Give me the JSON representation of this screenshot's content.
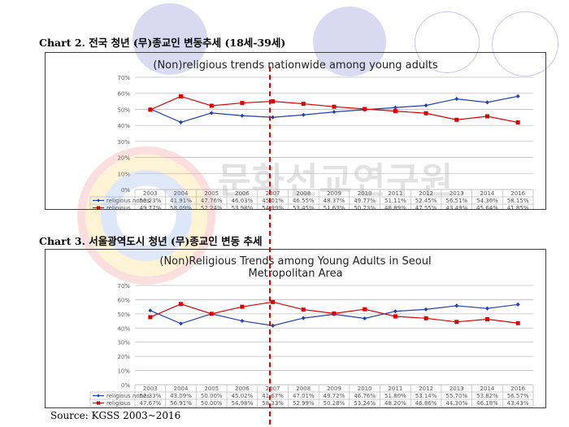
{
  "headings": {
    "chart2": "Chart 2. 전국 청년 (무)종교인 변동추세 (18세-39세)",
    "chart3": "Chart 3. 서울광역도시 청년 (무)종교인 변동 추세"
  },
  "source": "Source: KGSS 2003~2016",
  "watermark": "문화선교연구원",
  "colors": {
    "nones": "#1f3fb4",
    "religious": "#e00000",
    "grid": "#bfbfbf",
    "decor_circle": "#d9d9f2",
    "reference_line": "#e00000"
  },
  "chart_data": [
    {
      "type": "line",
      "title": "(Non)religious trends nationwide among young adults",
      "categories": [
        "2003",
        "2004",
        "2005",
        "2006",
        "2007",
        "2008",
        "2009",
        "2010",
        "2011",
        "2012",
        "2013",
        "2014",
        "2016"
      ],
      "ylim": [
        0,
        70
      ],
      "yticks": [
        "0%",
        "10%",
        "20%",
        "30%",
        "40%",
        "50%",
        "60%",
        "70%"
      ],
      "grid": true,
      "series": [
        {
          "name": "religious nones",
          "values": [
            50.23,
            41.91,
            47.76,
            46.03,
            45.01,
            46.55,
            48.37,
            49.77,
            51.11,
            52.45,
            56.51,
            54.36,
            58.15
          ],
          "labels": [
            "50.23%",
            "41.91%",
            "47.76%",
            "46.03%",
            "45.01%",
            "46.55%",
            "48.37%",
            "49.77%",
            "51.11%",
            "52.45%",
            "56.51%",
            "54.36%",
            "58.15%"
          ]
        },
        {
          "name": "religious",
          "values": [
            49.77,
            58.09,
            52.24,
            53.98,
            54.99,
            53.45,
            51.63,
            50.23,
            48.89,
            47.55,
            43.49,
            45.64,
            41.85
          ],
          "labels": [
            "49.77%",
            "58.09%",
            "52.24%",
            "53.98%",
            "54.99%",
            "53.45%",
            "51.63%",
            "50.23%",
            "48.89%",
            "47.55%",
            "43.49%",
            "45.64%",
            "41.85%"
          ]
        }
      ]
    },
    {
      "type": "line",
      "title": "(Non)Religious Trends among Young Adults in Seoul Metropolitan Area",
      "title_lines": [
        "(Non)Religious Trends among Young Adults in Seoul",
        "Metropolitan Area"
      ],
      "categories": [
        "2003",
        "2004",
        "2005",
        "2006",
        "2007",
        "2008",
        "2009",
        "2010",
        "2011",
        "2012",
        "2013",
        "2014",
        "2016"
      ],
      "ylim": [
        0,
        70
      ],
      "yticks": [
        "0%",
        "10%",
        "20%",
        "30%",
        "40%",
        "50%",
        "60%",
        "70%"
      ],
      "grid": true,
      "series": [
        {
          "name": "religious nones",
          "values": [
            52.33,
            43.09,
            50.0,
            45.02,
            41.67,
            47.01,
            49.72,
            46.76,
            51.8,
            53.14,
            55.7,
            53.82,
            56.57
          ],
          "labels": [
            "52.33%",
            "43.09%",
            "50.00%",
            "45.02%",
            "41.67%",
            "47.01%",
            "49.72%",
            "46.76%",
            "51.80%",
            "53.14%",
            "55.70%",
            "53.82%",
            "56.57%"
          ]
        },
        {
          "name": "religious",
          "values": [
            47.67,
            56.91,
            50.0,
            54.98,
            58.33,
            52.99,
            50.28,
            53.24,
            48.2,
            46.86,
            44.3,
            46.18,
            43.43
          ],
          "labels": [
            "47.67%",
            "56.91%",
            "50.00%",
            "54.98%",
            "58.33%",
            "52.99%",
            "50.28%",
            "53.24%",
            "48.20%",
            "46.86%",
            "44.30%",
            "46.18%",
            "43.43%"
          ]
        }
      ]
    }
  ]
}
